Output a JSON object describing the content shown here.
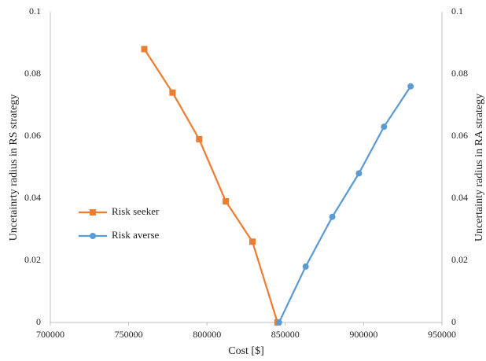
{
  "chart_data": {
    "type": "line",
    "x_label": "Cost [$]",
    "y_label": "Uncetainrty radius in RS strategy",
    "y2_label": "Uncertainty radius in RA strategy",
    "xlim": [
      700000,
      950000
    ],
    "xticks": [
      700000,
      750000,
      800000,
      850000,
      900000,
      950000
    ],
    "ylim": [
      0,
      0.1
    ],
    "yticks": [
      0,
      0.02,
      0.04,
      0.06,
      0.08,
      0.1
    ],
    "y2lim": [
      0,
      0.1
    ],
    "y2ticks": [
      0,
      0.02,
      0.04,
      0.06,
      0.08,
      0.1
    ],
    "grid": false,
    "legend": "left",
    "series": [
      {
        "name": "Risk seeker",
        "color": "#ed7d31",
        "marker": "square",
        "x": [
          760000,
          778000,
          795000,
          812000,
          829000,
          845000
        ],
        "values": [
          0.088,
          0.074,
          0.059,
          0.039,
          0.026,
          0
        ]
      },
      {
        "name": "Risk averse",
        "color": "#5b9bd5",
        "marker": "circle",
        "axis": "y2",
        "x": [
          846000,
          863000,
          880000,
          897000,
          913000,
          930000
        ],
        "values": [
          0,
          0.018,
          0.034,
          0.048,
          0.063,
          0.076
        ]
      }
    ]
  }
}
